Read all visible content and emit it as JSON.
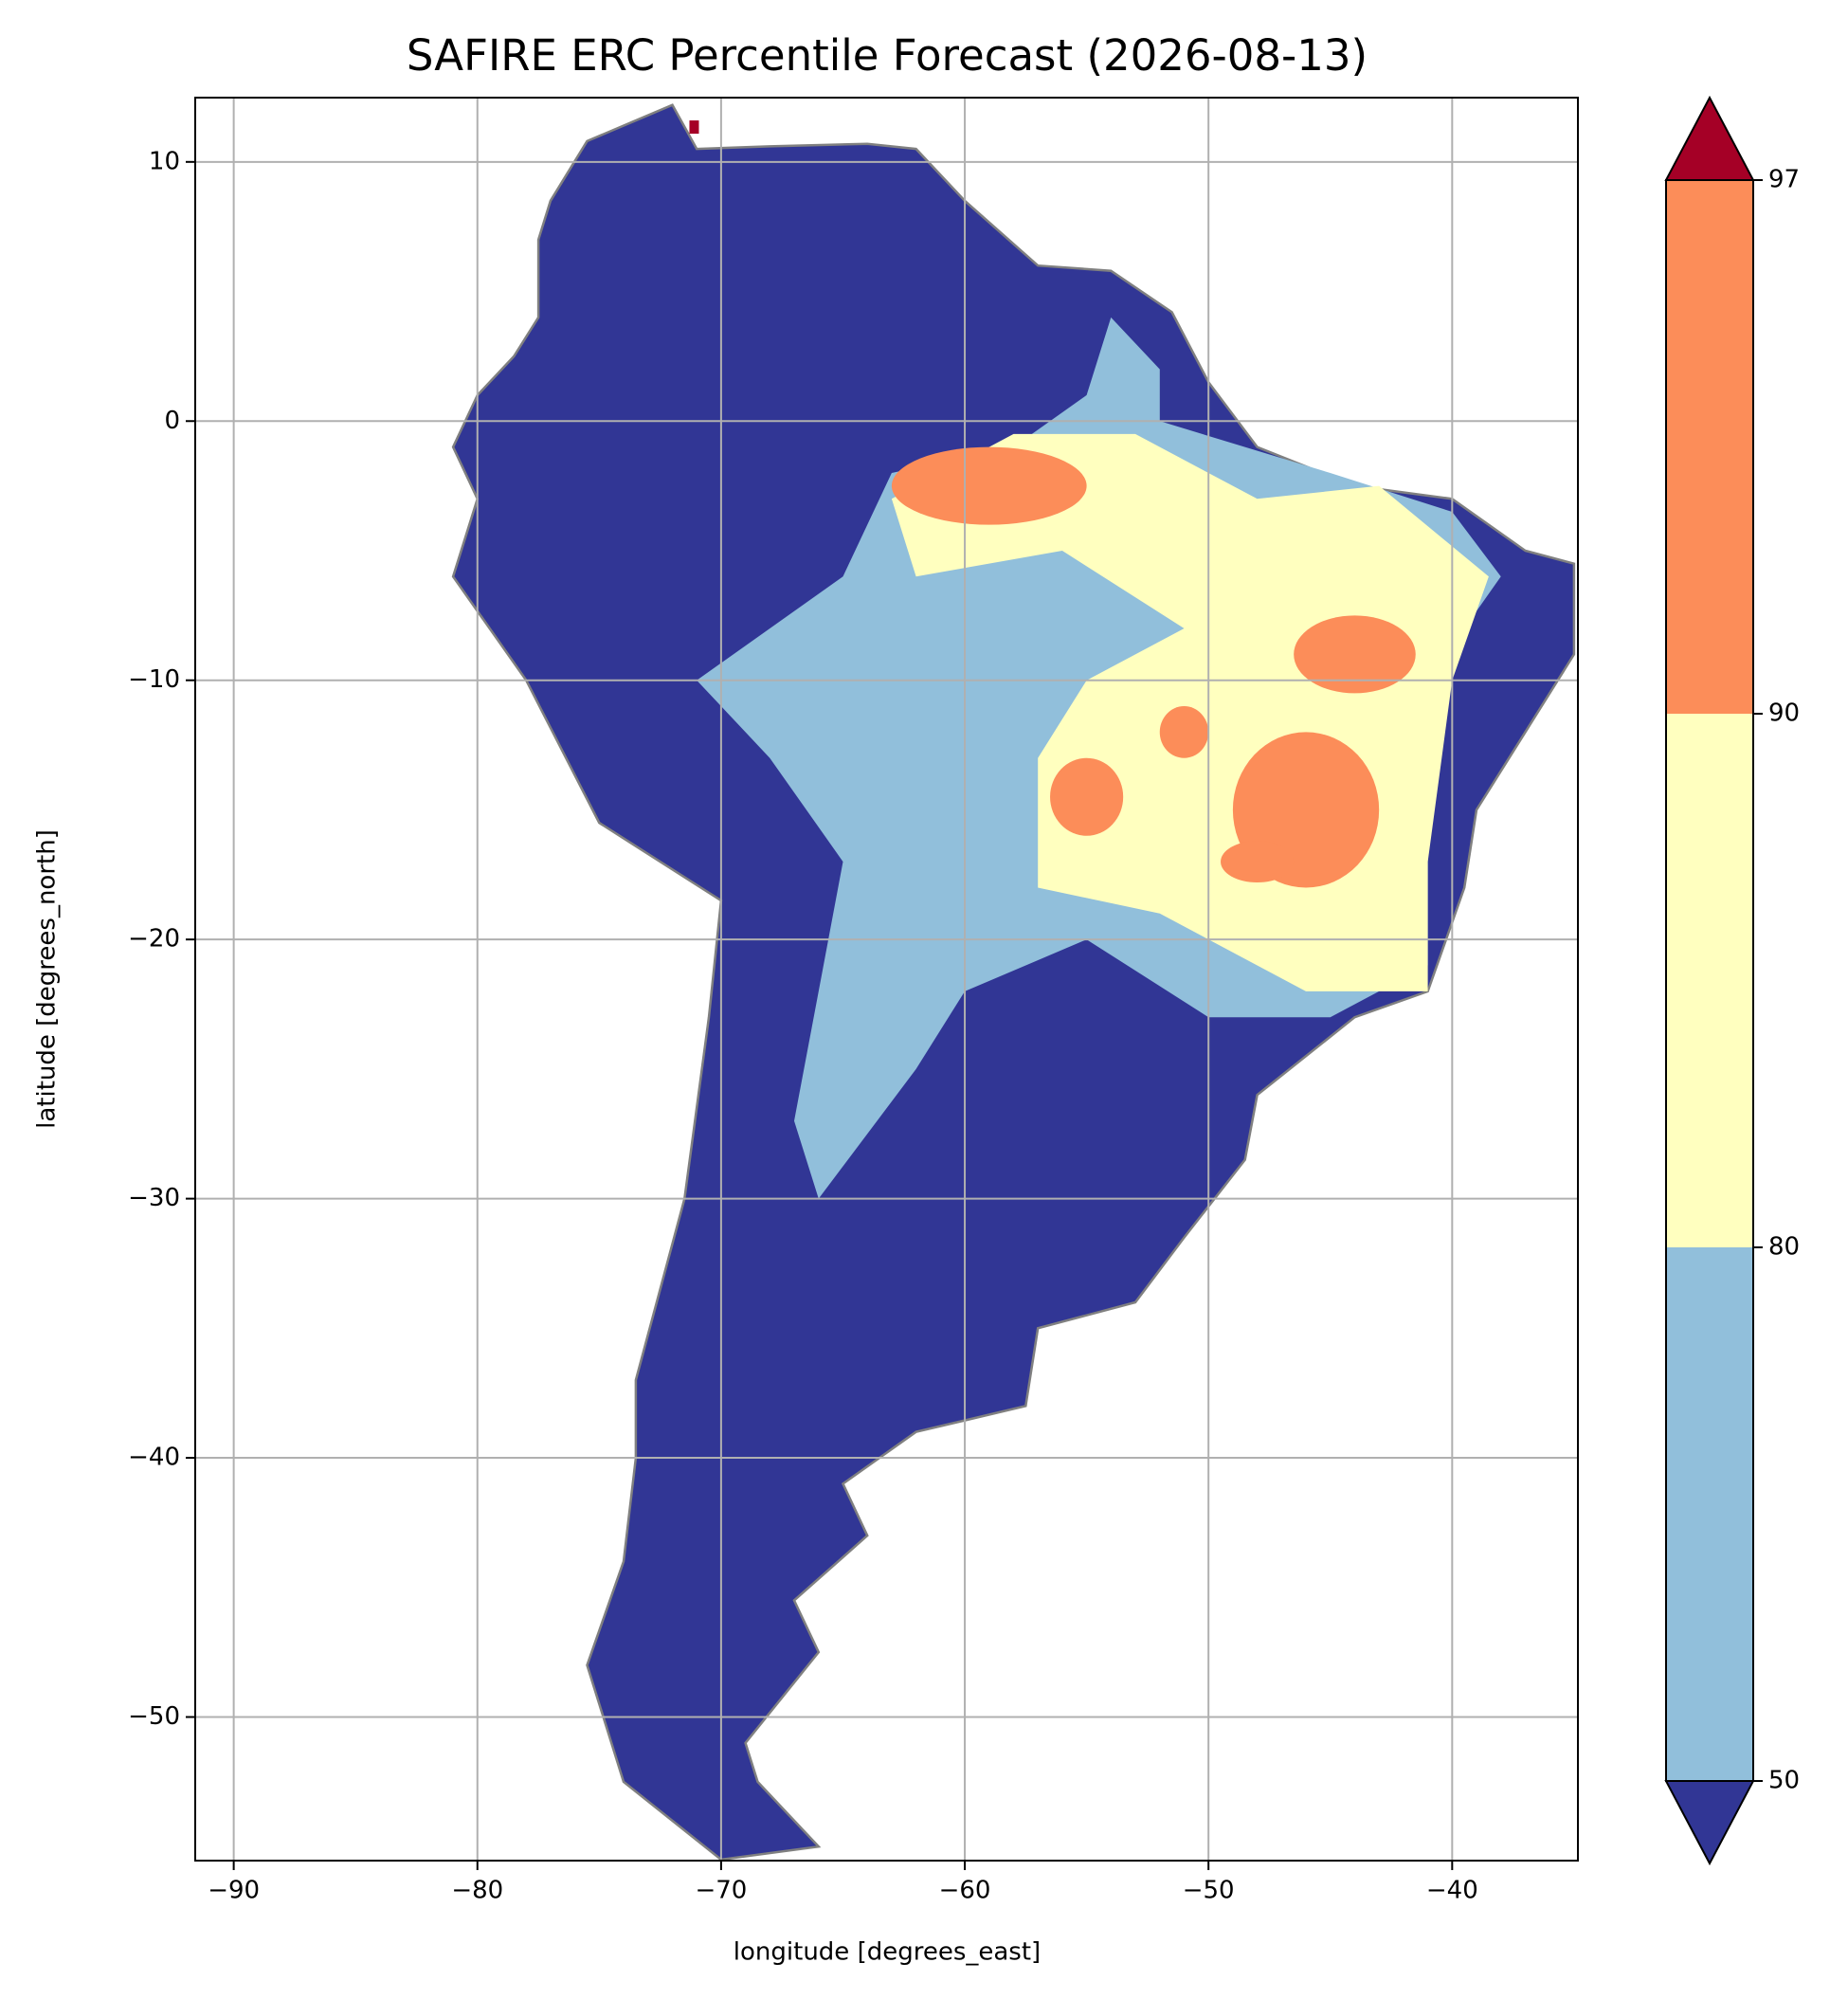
{
  "chart_data": {
    "type": "map",
    "title": "SAFIRE ERC Percentile Forecast (2026-08-13)",
    "x_label": "longitude [degrees_east]",
    "y_label": "latitude [degrees_north]",
    "xlim": [
      -91.58,
      -34.84
    ],
    "ylim": [
      -55.54,
      12.48
    ],
    "xticks": [
      {
        "value": -90,
        "label": "−90"
      },
      {
        "value": -80,
        "label": "−80"
      },
      {
        "value": -70,
        "label": "−70"
      },
      {
        "value": -60,
        "label": "−60"
      },
      {
        "value": -50,
        "label": "−50"
      },
      {
        "value": -40,
        "label": "−40"
      }
    ],
    "yticks": [
      {
        "value": -50,
        "label": "−50"
      },
      {
        "value": -40,
        "label": "−40"
      },
      {
        "value": -30,
        "label": "−30"
      },
      {
        "value": -20,
        "label": "−20"
      },
      {
        "value": -10,
        "label": "−10"
      },
      0,
      10
    ],
    "grid": true,
    "colorbar": {
      "levels": [
        50,
        80,
        90,
        97
      ],
      "colors": [
        "#91bfdb",
        "#ffffbf",
        "#fc8d59"
      ],
      "under_color": "#313695",
      "over_color": "#a50026",
      "extend": "both"
    }
  }
}
